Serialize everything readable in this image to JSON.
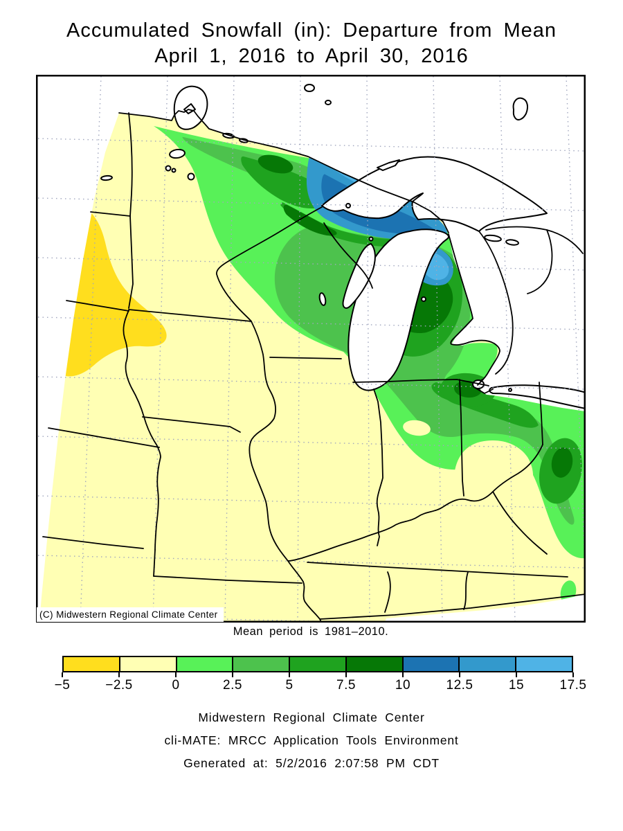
{
  "title": {
    "line1": "Accumulated Snowfall (in): Departure from Mean",
    "line2": "April 1, 2016 to April 30, 2016"
  },
  "map_overlay": {
    "copyright": "(C) Midwestern Regional Climate Center",
    "mean_note": "Mean period is 1981–2010."
  },
  "legend": {
    "tick_labels": [
      "−5",
      "−2.5",
      "0",
      "2.5",
      "5",
      "7.5",
      "10",
      "12.5",
      "15",
      "17.5"
    ],
    "bin_colors": [
      "#FFDE1E",
      "#FFFFB4",
      "#58F158",
      "#4DC24D",
      "#1FA31F",
      "#067806",
      "#1C73B2",
      "#3399CC",
      "#4FB3E6"
    ],
    "units": "in"
  },
  "footer": {
    "line1": "Midwestern Regional Climate Center",
    "line2": "cli-MATE: MRCC Application Tools Environment",
    "line3": "Generated at: 5/2/2016 2:07:58 PM CDT"
  },
  "map_colors": {
    "background": "#FFFFFF",
    "frame": "#000000",
    "state_lines": "#000000",
    "graticule": "#A0A6BE",
    "water": "#FFFFFF"
  }
}
